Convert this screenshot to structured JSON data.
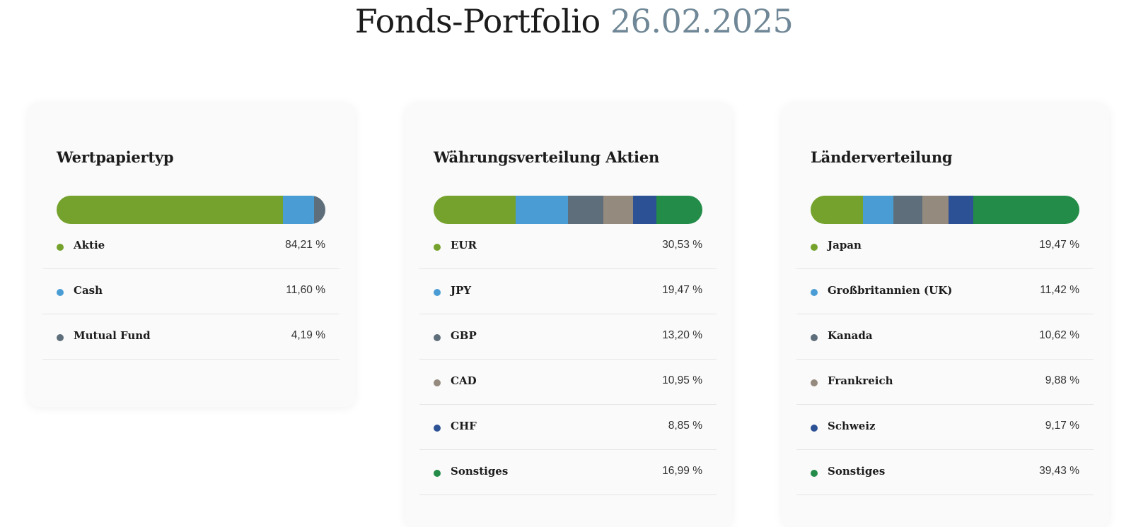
{
  "page": {
    "title": "Fonds-Portfolio",
    "date": "26.02.2025"
  },
  "chart_data": [
    {
      "type": "bar",
      "title": "Wertpapiertyp",
      "stacked": true,
      "unit": "%",
      "categories": [
        "Aktie",
        "Cash",
        "Mutual Fund"
      ],
      "values": [
        84.21,
        11.6,
        4.19
      ],
      "labels": [
        "84,21 %",
        "11,60 %",
        "4,19 %"
      ],
      "colors": [
        "#74a22c",
        "#4a9dd4",
        "#5e6f7b"
      ]
    },
    {
      "type": "bar",
      "title": "Währungsverteilung Aktien",
      "stacked": true,
      "unit": "%",
      "categories": [
        "EUR",
        "JPY",
        "GBP",
        "CAD",
        "CHF",
        "Sonstiges"
      ],
      "values": [
        30.53,
        19.47,
        13.2,
        10.95,
        8.85,
        16.99
      ],
      "labels": [
        "30,53 %",
        "19,47 %",
        "13,20 %",
        "10,95 %",
        "8,85 %",
        "16,99 %"
      ],
      "colors": [
        "#74a22c",
        "#4a9dd4",
        "#5e6f7b",
        "#958a7e",
        "#2c5194",
        "#238c48"
      ]
    },
    {
      "type": "bar",
      "title": "Länderverteilung",
      "stacked": true,
      "unit": "%",
      "categories": [
        "Japan",
        "Großbritannien (UK)",
        "Kanada",
        "Frankreich",
        "Schweiz",
        "Sonstiges"
      ],
      "values": [
        19.47,
        11.42,
        10.62,
        9.88,
        9.17,
        39.43
      ],
      "labels": [
        "19,47 %",
        "11,42 %",
        "10,62 %",
        "9,88 %",
        "9,17 %",
        "39,43 %"
      ],
      "colors": [
        "#74a22c",
        "#4a9dd4",
        "#5e6f7b",
        "#958a7e",
        "#2c5194",
        "#238c48"
      ]
    }
  ]
}
